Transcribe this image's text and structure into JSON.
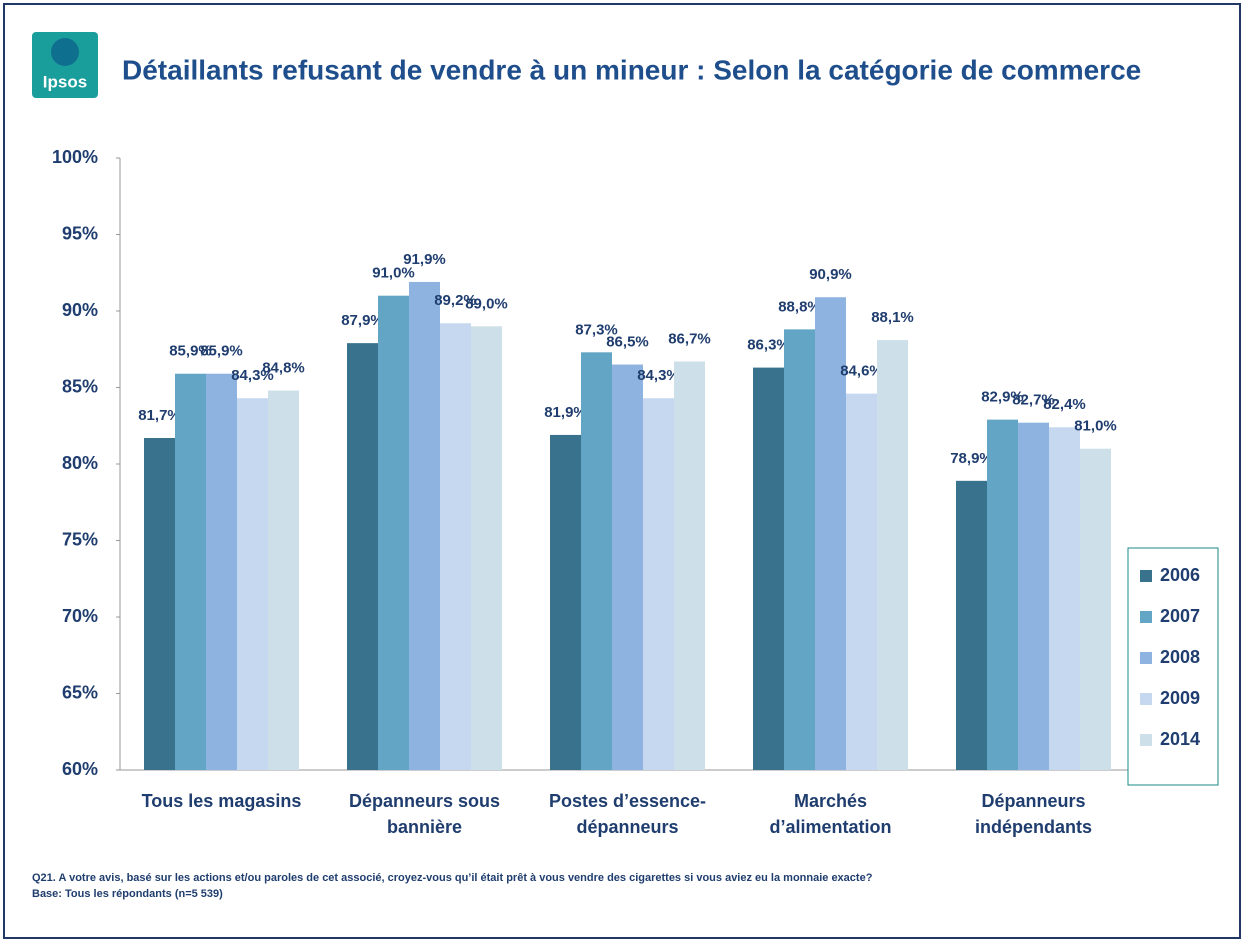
{
  "logo_text": "Ipsos",
  "chart_data": {
    "type": "bar",
    "title": "Détaillants refusant de vendre à un mineur : Selon la catégorie de commerce",
    "categories": [
      "Tous les magasins",
      "Dépanneurs sous bannière",
      "Postes d’essence-dépanneurs",
      "Marchés d’alimentation",
      "Dépanneurs indépendants"
    ],
    "series": [
      {
        "name": "2006",
        "color": "#38728c",
        "values": [
          81.7,
          87.9,
          81.9,
          86.3,
          78.9
        ],
        "value_labels": [
          "81,7%",
          "87,9%",
          "81,9%",
          "86,3%",
          "78,9%"
        ]
      },
      {
        "name": "2007",
        "color": "#62a5c4",
        "values": [
          85.9,
          91.0,
          87.3,
          88.8,
          82.9
        ],
        "value_labels": [
          "85,9%",
          "91,0%",
          "87,3%",
          "88,8%",
          "82,9%"
        ]
      },
      {
        "name": "2008",
        "color": "#8fb3e0",
        "values": [
          85.9,
          91.9,
          86.5,
          90.9,
          82.7
        ],
        "value_labels": [
          "85,9%",
          "91,9%",
          "86,5%",
          "90,9%",
          "82,7%"
        ]
      },
      {
        "name": "2009",
        "color": "#c6d8f0",
        "values": [
          84.3,
          89.2,
          84.3,
          84.6,
          82.4
        ],
        "value_labels": [
          "84,3%",
          "89,2%",
          "84,3%",
          "84,6%",
          "82,4%"
        ]
      },
      {
        "name": "2014",
        "color": "#cde0ea",
        "values": [
          84.8,
          89.0,
          86.7,
          88.1,
          81.0
        ],
        "value_labels": [
          "84,8%",
          "89,0%",
          "86,7%",
          "88,1%",
          "81,0%"
        ]
      }
    ],
    "ylim": [
      60,
      100
    ],
    "yticks": [
      {
        "value": 60,
        "label": "60%"
      },
      {
        "value": 65,
        "label": "65%"
      },
      {
        "value": 70,
        "label": "70%"
      },
      {
        "value": 75,
        "label": "75%"
      },
      {
        "value": 80,
        "label": "80%"
      },
      {
        "value": 85,
        "label": "85%"
      },
      {
        "value": 90,
        "label": "90%"
      },
      {
        "value": 95,
        "label": "95%"
      },
      {
        "value": 100,
        "label": "100%"
      }
    ],
    "legend": "right",
    "notes": [
      "Q21. A votre avis, basé sur les actions et/ou paroles de cet associé, croyez-vous qu’il était prêt à vous vendre des cigarettes si vous aviez eu la monnaie exacte?",
      "Base: Tous les répondants (n=5 539)"
    ]
  }
}
